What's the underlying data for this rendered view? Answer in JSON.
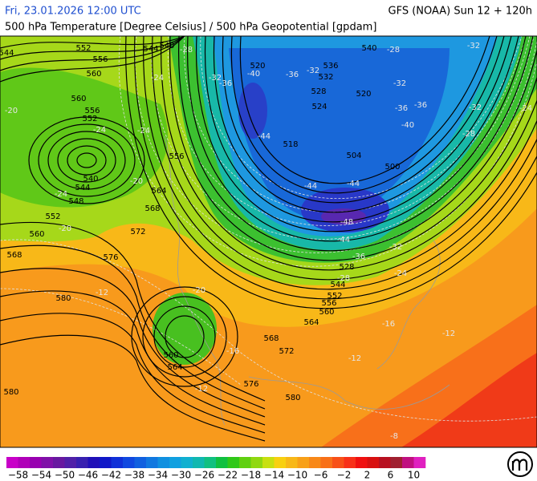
{
  "header": {
    "datetime": "Fri, 23.01.2026 12:00 UTC",
    "model": "GFS (NOAA) Sun 12 + 120h",
    "parameter": "500 hPa Temperature [Degree Celsius] / 500 hPa Geopotential [gpdam]"
  },
  "map": {
    "geopotential_labels": [
      "552",
      "556",
      "560",
      "544",
      "544",
      "540",
      "560",
      "556",
      "552",
      "540",
      "544",
      "548",
      "552",
      "560",
      "568",
      "572",
      "576",
      "580",
      "580",
      "556",
      "564",
      "568",
      "520",
      "536",
      "532",
      "528",
      "524",
      "520",
      "540",
      "518",
      "504",
      "500",
      "528",
      "544",
      "552",
      "556",
      "560",
      "564",
      "568",
      "572",
      "576",
      "580",
      "560",
      "564"
    ],
    "temperature_labels": [
      "-28",
      "-32",
      "-36",
      "-40",
      "-44",
      "-36",
      "-32",
      "-28",
      "-32",
      "-36",
      "-36",
      "-32",
      "-32",
      "-28",
      "-24",
      "-40",
      "-44",
      "-44",
      "-48",
      "-44",
      "-36",
      "-32",
      "-28",
      "-24",
      "-24",
      "-24",
      "-24",
      "-20",
      "-24",
      "-20",
      "-20",
      "-16",
      "-12",
      "-12",
      "-12",
      "-12",
      "-8",
      "-16",
      "-20"
    ]
  },
  "legend": {
    "labels": [
      "−58",
      "−54",
      "−50",
      "−46",
      "−42",
      "−38",
      "−34",
      "−30",
      "−26",
      "−22",
      "−18",
      "−14",
      "−10",
      "−6",
      "−2",
      "2",
      "6",
      "10"
    ]
  }
}
